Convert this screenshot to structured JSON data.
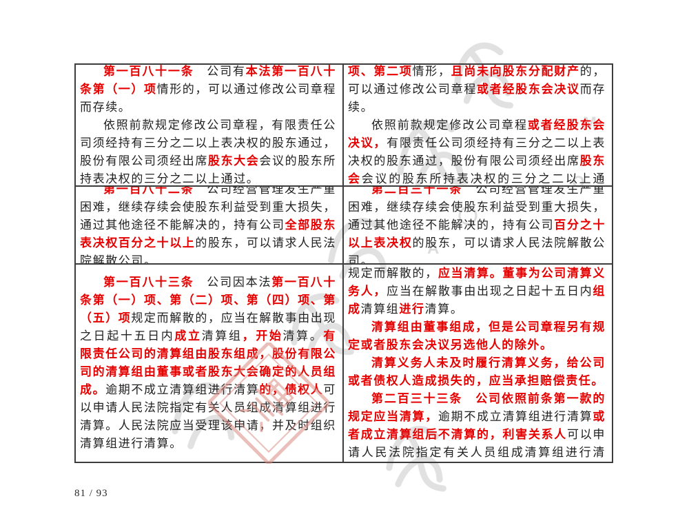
{
  "page": {
    "footer": "81 / 93"
  },
  "colors": {
    "accent_red": "#e60000",
    "body_text": "#212121",
    "table_border": "#3c3c3c",
    "seal_pink": "#d98b82",
    "watermark_gray": "#9a9a9a"
  },
  "watermark": {
    "letters": [
      "M",
      "O",
      "A"
    ]
  },
  "table": {
    "rows": [
      {
        "left": {
          "paragraphs": [
            [
              {
                "t": "第一百八十一条",
                "red": true
              },
              {
                "t": "　公司有",
                "red": false
              },
              {
                "t": "本法第一百八十条第（一）项",
                "red": true
              },
              {
                "t": "情形的，可以通过修改公司章程而存续。",
                "red": false
              }
            ],
            [
              {
                "t": "依照前款规定修改公司章程，有限责任公司须经持有三分之二以上表决权的股东通过，股份有限公司须经出席",
                "red": false
              },
              {
                "t": "股东大会",
                "red": true
              },
              {
                "t": "会议的股东所持表决权的三分之二以上通过。",
                "red": false
              }
            ]
          ]
        },
        "right": {
          "paragraphs": [
            [
              {
                "t": "第二百三十条",
                "red": true
              },
              {
                "t": "　公司有",
                "red": false
              },
              {
                "t": "前条第一款第一项、第二项",
                "red": true
              },
              {
                "t": "情形，",
                "red": false
              },
              {
                "t": "且尚未向股东分配财产",
                "red": true
              },
              {
                "t": "的，可以通过修改公司章程",
                "red": false
              },
              {
                "t": "或者经股东会决议",
                "red": true
              },
              {
                "t": "而存续。",
                "red": false
              }
            ],
            [
              {
                "t": "依照前款规定修改公司章程",
                "red": false
              },
              {
                "t": "或者经股东会决议，",
                "red": true
              },
              {
                "t": "有限责任公司须经持有三分之二以上表决权的股东通过，股份有限公司须经出席",
                "red": false
              },
              {
                "t": "股东会",
                "red": true
              },
              {
                "t": "会议的股东所持表决权的三分之二以上通过。",
                "red": false
              }
            ]
          ]
        }
      },
      {
        "left": {
          "paragraphs": [
            [
              {
                "t": "第一百八十二条",
                "red": true
              },
              {
                "t": "　公司经营管理发生严重困难，继续存续会使股东利益受到重大损失，通过其他途径不能解决的，持有公司",
                "red": false
              },
              {
                "t": "全部股东表决权百分之十以上",
                "red": true
              },
              {
                "t": "的股东，可以请求人民法院解散公司。",
                "red": false
              }
            ]
          ]
        },
        "right": {
          "paragraphs": [
            [
              {
                "t": "第二百三十一条",
                "red": true
              },
              {
                "t": "　公司经营管理发生严重困难，继续存续会使股东利益受到重大损失，通过其他途径不能解决的，持有公司",
                "red": false
              },
              {
                "t": "百分之十以上表决权",
                "red": true
              },
              {
                "t": "的股东，可以请求人民法院解散公司。",
                "red": false
              }
            ]
          ]
        }
      },
      {
        "left": {
          "paragraphs": [
            [
              {
                "t": "第一百八十三条",
                "red": true
              },
              {
                "t": "　公司因本法",
                "red": false
              },
              {
                "t": "第一百八十条第（一）项、第（二）项、第（四）项、第（五）项",
                "red": true
              },
              {
                "t": "规定而解散的，应当在解散事由出现之日起十五日内",
                "red": false
              },
              {
                "t": "成立",
                "red": true
              },
              {
                "t": "清算组",
                "red": false
              },
              {
                "t": "，开始",
                "red": true
              },
              {
                "t": "清算。",
                "red": false
              },
              {
                "t": "有限责任公司的清算组由股东组成，股份有限公司的清算组由董事或者股东大会确定的人员组成。",
                "red": true
              },
              {
                "t": "逾期不成立清算组进行清算",
                "red": false
              },
              {
                "t": "的，债权人",
                "red": true
              },
              {
                "t": "可以申请人民法院指定有关人员组成清算组进行清算。人民法院应当受理该申请，并及时组织清算组进行清算。",
                "red": false
              }
            ]
          ]
        },
        "right": {
          "paragraphs": [
            [
              {
                "t": "第二百三十二条",
                "red": true
              },
              {
                "t": "　公司因本法",
                "red": false
              },
              {
                "t": "第二百二十九条第一款第一项、第二项、第四项、第五项",
                "red": true
              },
              {
                "t": "规定而解散的，",
                "red": false
              },
              {
                "t": "应当清算。董事为公司清算义务人，",
                "red": true
              },
              {
                "t": "应当在解散事由出现之日起十五日内",
                "red": false
              },
              {
                "t": "组成",
                "red": true
              },
              {
                "t": "清算组",
                "red": false
              },
              {
                "t": "进行",
                "red": true
              },
              {
                "t": "清算。",
                "red": false
              }
            ],
            [
              {
                "t": "清算组由董事组成，但是公司章程另有规定或者股东会决议另选他人的除外。",
                "red": true
              }
            ],
            [
              {
                "t": "清算义务人未及时履行清算义务，给公司或者债权人造成损失的，应当承担赔偿责任。",
                "red": true
              }
            ],
            [
              {
                "t": "第二百三十三条",
                "red": true
              },
              {
                "t": "　",
                "red": false
              },
              {
                "t": "公司依照前条第一款的规定应当清算，",
                "red": true
              },
              {
                "t": "逾期不成立清算组进行清算",
                "red": false
              },
              {
                "t": "或者成立清算组后不清算的，利害关系人",
                "red": true
              },
              {
                "t": "可以申请人民法院指定有关人员组成清算组进行清算。人民法院应当受理该申请，并及时组织清算",
                "red": false
              }
            ]
          ]
        }
      }
    ]
  }
}
